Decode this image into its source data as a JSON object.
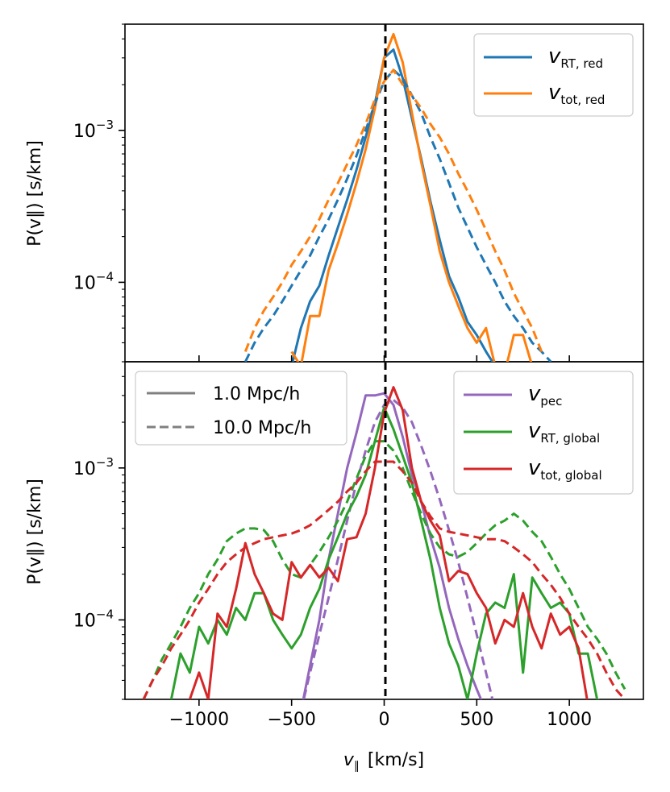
{
  "chart_data": [
    {
      "type": "line",
      "panel": "top",
      "ylabel": "P(v∥) [s/km]",
      "yscale": "log",
      "ylim": [
        3e-05,
        0.005
      ],
      "xlim": [
        -1400,
        1400
      ],
      "y_ticks": [
        {
          "value": 0.001,
          "base": "10",
          "exp": "−3"
        },
        {
          "value": 0.0001,
          "base": "10",
          "exp": "−4"
        }
      ],
      "legend": {
        "position": "top-right",
        "entries": [
          {
            "series": "v_RT_red",
            "main": "v",
            "sub": "RT, red"
          },
          {
            "series": "v_tot_red",
            "main": "v",
            "sub": "tot, red"
          }
        ]
      },
      "series": [
        {
          "name": "v_RT_red",
          "scale": "1.0 Mpc/h",
          "style": "solid",
          "color": "#1f77b4",
          "x": [
            -500,
            -450,
            -400,
            -350,
            -300,
            -250,
            -200,
            -150,
            -100,
            -50,
            0,
            50,
            100,
            150,
            200,
            250,
            300,
            350,
            400,
            450,
            500,
            550,
            600,
            650
          ],
          "y": [
            2.8e-05,
            5e-05,
            7.5e-05,
            9.5e-05,
            0.00015,
            0.00023,
            0.00035,
            0.00055,
            0.0009,
            0.0015,
            0.003,
            0.0034,
            0.0022,
            0.0012,
            0.00065,
            0.00034,
            0.00019,
            0.00011,
            8e-05,
            5.5e-05,
            4.5e-05,
            3.5e-05,
            2.8e-05,
            2.5e-05
          ]
        },
        {
          "name": "v_tot_red",
          "scale": "1.0 Mpc/h",
          "style": "solid",
          "color": "#ff7f0e",
          "x": [
            -500,
            -450,
            -400,
            -350,
            -300,
            -250,
            -200,
            -150,
            -100,
            -50,
            0,
            50,
            100,
            150,
            200,
            250,
            300,
            350,
            400,
            450,
            500,
            550,
            600,
            650,
            700,
            750,
            800
          ],
          "y": [
            3.5e-05,
            2.8e-05,
            6e-05,
            6e-05,
            0.00012,
            0.00018,
            0.00028,
            0.00045,
            0.00075,
            0.0014,
            0.003,
            0.0043,
            0.0028,
            0.0013,
            0.00062,
            0.00032,
            0.00016,
            0.0001,
            7e-05,
            5e-05,
            4e-05,
            5e-05,
            2.8e-05,
            2.5e-05,
            4.5e-05,
            4.5e-05,
            2.8e-05
          ]
        },
        {
          "name": "v_RT_red",
          "scale": "10.0 Mpc/h",
          "style": "dashed",
          "color": "#1f77b4",
          "x": [
            -750,
            -700,
            -650,
            -600,
            -550,
            -500,
            -450,
            -400,
            -350,
            -300,
            -250,
            -200,
            -150,
            -100,
            -50,
            0,
            50,
            100,
            150,
            200,
            250,
            300,
            350,
            400,
            450,
            500,
            550,
            600,
            650,
            700,
            750,
            800,
            850,
            900
          ],
          "y": [
            3e-05,
            4e-05,
            5e-05,
            6e-05,
            7.5e-05,
            9.5e-05,
            0.00012,
            0.00015,
            0.0002,
            0.00026,
            0.00035,
            0.00048,
            0.00068,
            0.001,
            0.0015,
            0.0021,
            0.0025,
            0.0022,
            0.0017,
            0.0013,
            0.0009,
            0.00065,
            0.00045,
            0.00031,
            0.00023,
            0.00017,
            0.00013,
            0.0001,
            7.5e-05,
            6e-05,
            5e-05,
            4e-05,
            3.5e-05,
            3e-05
          ]
        },
        {
          "name": "v_tot_red",
          "scale": "10.0 Mpc/h",
          "style": "dashed",
          "color": "#ff7f0e",
          "x": [
            -750,
            -700,
            -650,
            -600,
            -550,
            -500,
            -450,
            -400,
            -350,
            -300,
            -250,
            -200,
            -150,
            -100,
            -50,
            0,
            50,
            100,
            150,
            200,
            250,
            300,
            350,
            400,
            450,
            500,
            550,
            600,
            650,
            700,
            750,
            800,
            850
          ],
          "y": [
            3.5e-05,
            5e-05,
            6.5e-05,
            8e-05,
            0.0001,
            0.00013,
            0.00016,
            0.0002,
            0.00026,
            0.00035,
            0.00045,
            0.0006,
            0.0008,
            0.0011,
            0.0016,
            0.0021,
            0.0025,
            0.002,
            0.0017,
            0.0014,
            0.0011,
            0.0009,
            0.0007,
            0.00052,
            0.0004,
            0.0003,
            0.00022,
            0.00016,
            0.00012,
            8.5e-05,
            6.5e-05,
            5e-05,
            3.5e-05
          ]
        }
      ]
    },
    {
      "type": "line",
      "panel": "bottom",
      "xlabel_main": "v",
      "xlabel_sub": "∥",
      "xlabel_unit": "[km/s]",
      "ylabel": "P(v∥) [s/km]",
      "yscale": "log",
      "ylim": [
        3e-05,
        0.005
      ],
      "xlim": [
        -1400,
        1400
      ],
      "x_ticks": [
        {
          "value": -1000,
          "label": "−1000"
        },
        {
          "value": -500,
          "label": "−500"
        },
        {
          "value": 0,
          "label": "0"
        },
        {
          "value": 500,
          "label": "500"
        },
        {
          "value": 1000,
          "label": "1000"
        }
      ],
      "y_ticks": [
        {
          "value": 0.001,
          "base": "10",
          "exp": "−3"
        },
        {
          "value": 0.0001,
          "base": "10",
          "exp": "−4"
        }
      ],
      "legend_styles": {
        "position": "top-left",
        "entries": [
          {
            "style": "solid",
            "label": "1.0 Mpc/h"
          },
          {
            "style": "dashed",
            "label": "10.0 Mpc/h"
          }
        ]
      },
      "legend": {
        "position": "top-right",
        "entries": [
          {
            "series": "v_pec",
            "main": "v",
            "sub": "pec"
          },
          {
            "series": "v_RT_global",
            "main": "v",
            "sub": "RT, global"
          },
          {
            "series": "v_tot_global",
            "main": "v",
            "sub": "tot, global"
          }
        ]
      },
      "series": [
        {
          "name": "v_pec",
          "scale": "1.0 Mpc/h",
          "style": "solid",
          "color": "#9467bd",
          "x": [
            -450,
            -400,
            -350,
            -300,
            -250,
            -200,
            -150,
            -100,
            -50,
            0,
            50,
            100,
            150,
            200,
            250,
            300,
            350,
            400,
            450,
            500,
            550
          ],
          "y": [
            2.5e-05,
            5e-05,
            0.0001,
            0.00025,
            0.0005,
            0.001,
            0.0017,
            0.003,
            0.003,
            0.0031,
            0.0026,
            0.0016,
            0.0009,
            0.0006,
            0.00035,
            0.00022,
            0.00012,
            7.5e-05,
            5e-05,
            3.5e-05,
            2.5e-05
          ]
        },
        {
          "name": "v_pec",
          "scale": "10.0 Mpc/h",
          "style": "dashed",
          "color": "#9467bd",
          "x": [
            -450,
            -400,
            -350,
            -300,
            -250,
            -200,
            -150,
            -100,
            -50,
            0,
            50,
            100,
            150,
            200,
            250,
            300,
            350,
            400,
            450,
            500,
            550,
            600
          ],
          "y": [
            2.5e-05,
            4.5e-05,
            8e-05,
            0.00014,
            0.00025,
            0.00045,
            0.0008,
            0.0013,
            0.002,
            0.0026,
            0.0028,
            0.0025,
            0.002,
            0.0014,
            0.00095,
            0.00062,
            0.00039,
            0.00024,
            0.00014,
            8e-05,
            4.5e-05,
            2.5e-05
          ]
        },
        {
          "name": "v_RT_global",
          "scale": "1.0 Mpc/h",
          "style": "solid",
          "color": "#2ca02c",
          "x": [
            -1150,
            -1100,
            -1050,
            -1000,
            -950,
            -900,
            -850,
            -800,
            -750,
            -700,
            -650,
            -600,
            -550,
            -500,
            -450,
            -400,
            -350,
            -300,
            -250,
            -200,
            -150,
            -100,
            -50,
            0,
            50,
            100,
            150,
            200,
            250,
            300,
            350,
            400,
            450,
            500,
            550,
            600,
            650,
            700,
            750,
            800,
            850,
            900,
            950,
            1000,
            1050,
            1100,
            1150,
            1200
          ],
          "y": [
            3e-05,
            6e-05,
            4.5e-05,
            9e-05,
            7e-05,
            0.0001,
            8e-05,
            0.00012,
            0.0001,
            0.00015,
            0.00015,
            0.0001,
            8e-05,
            6.5e-05,
            8e-05,
            0.00012,
            0.00016,
            0.00025,
            0.00035,
            0.0005,
            0.00065,
            0.0009,
            0.0015,
            0.0025,
            0.0018,
            0.0012,
            0.0008,
            0.00045,
            0.00025,
            0.00012,
            7e-05,
            5e-05,
            3e-05,
            6e-05,
            0.00011,
            0.00013,
            0.00012,
            0.0002,
            4.5e-05,
            0.00019,
            0.00015,
            0.00012,
            0.00013,
            0.00011,
            6e-05,
            6e-05,
            3e-05,
            2.8e-05
          ]
        },
        {
          "name": "v_RT_global",
          "scale": "10.0 Mpc/h",
          "style": "dashed",
          "color": "#2ca02c",
          "x": [
            -1300,
            -1250,
            -1200,
            -1150,
            -1100,
            -1050,
            -1000,
            -950,
            -900,
            -850,
            -800,
            -750,
            -700,
            -650,
            -600,
            -550,
            -500,
            -450,
            -400,
            -350,
            -300,
            -250,
            -200,
            -150,
            -100,
            -50,
            0,
            50,
            100,
            150,
            200,
            250,
            300,
            350,
            400,
            450,
            500,
            550,
            600,
            650,
            700,
            750,
            800,
            850,
            900,
            950,
            1000,
            1050,
            1100,
            1150,
            1200,
            1250,
            1300
          ],
          "y": [
            3e-05,
            4e-05,
            5.5e-05,
            7e-05,
            9e-05,
            0.00012,
            0.00015,
            0.0002,
            0.00025,
            0.00033,
            0.00037,
            0.0004,
            0.0004,
            0.00039,
            0.00033,
            0.00025,
            0.0002,
            0.00019,
            0.00023,
            0.00028,
            0.00035,
            0.00045,
            0.0006,
            0.00085,
            0.0012,
            0.0015,
            0.0015,
            0.0013,
            0.001,
            0.0007,
            0.0005,
            0.00037,
            0.0003,
            0.00027,
            0.00026,
            0.00028,
            0.00032,
            0.00037,
            0.00042,
            0.00045,
            0.0005,
            0.00045,
            0.00038,
            0.00033,
            0.00026,
            0.0002,
            0.00016,
            0.00012,
            9e-05,
            7.5e-05,
            6e-05,
            4.5e-05,
            3.5e-05
          ]
        },
        {
          "name": "v_tot_global",
          "scale": "1.0 Mpc/h",
          "style": "solid",
          "color": "#d62728",
          "x": [
            -1050,
            -1000,
            -950,
            -900,
            -850,
            -800,
            -750,
            -700,
            -650,
            -600,
            -550,
            -500,
            -450,
            -400,
            -350,
            -300,
            -250,
            -200,
            -150,
            -100,
            -50,
            0,
            50,
            100,
            150,
            200,
            250,
            300,
            350,
            400,
            450,
            500,
            550,
            600,
            650,
            700,
            750,
            800,
            850,
            900,
            950,
            1000,
            1050,
            1100,
            1150
          ],
          "y": [
            3e-05,
            4.5e-05,
            3e-05,
            0.00011,
            9e-05,
            0.00016,
            0.00032,
            0.0002,
            0.00015,
            0.00011,
            0.0001,
            0.00024,
            0.00019,
            0.00023,
            0.00019,
            0.00022,
            0.00018,
            0.00034,
            0.00035,
            0.0005,
            0.001,
            0.0023,
            0.0034,
            0.0024,
            0.001,
            0.0006,
            0.00045,
            0.00036,
            0.00018,
            0.00021,
            0.0002,
            0.00015,
            0.00012,
            7e-05,
            0.0001,
            9e-05,
            0.00015,
            9e-05,
            6.5e-05,
            0.00011,
            8e-05,
            9e-05,
            6.5e-05,
            2.8e-05,
            2.5e-05
          ]
        },
        {
          "name": "v_tot_global",
          "scale": "10.0 Mpc/h",
          "style": "dashed",
          "color": "#d62728",
          "x": [
            -1300,
            -1250,
            -1200,
            -1150,
            -1100,
            -1050,
            -1000,
            -950,
            -900,
            -850,
            -800,
            -750,
            -700,
            -650,
            -600,
            -550,
            -500,
            -450,
            -400,
            -350,
            -300,
            -250,
            -200,
            -150,
            -100,
            -50,
            0,
            50,
            100,
            150,
            200,
            250,
            300,
            350,
            400,
            450,
            500,
            550,
            600,
            650,
            700,
            750,
            800,
            850,
            900,
            950,
            1000,
            1050,
            1100,
            1150,
            1200,
            1250,
            1300
          ],
          "y": [
            3e-05,
            4e-05,
            5e-05,
            6.5e-05,
            8e-05,
            0.0001,
            0.00013,
            0.00016,
            0.0002,
            0.00024,
            0.00027,
            0.0003,
            0.00032,
            0.00034,
            0.00035,
            0.00036,
            0.00037,
            0.00039,
            0.00042,
            0.00047,
            0.00053,
            0.0006,
            0.0007,
            0.0008,
            0.00095,
            0.0011,
            0.0011,
            0.0011,
            0.00095,
            0.0008,
            0.0006,
            0.00048,
            0.0004,
            0.00038,
            0.00037,
            0.00036,
            0.00035,
            0.00034,
            0.00034,
            0.00033,
            0.0003,
            0.00027,
            0.00024,
            0.0002,
            0.00017,
            0.00014,
            0.00011,
            9e-05,
            7.5e-05,
            6e-05,
            4.5e-05,
            3.5e-05,
            3e-05
          ]
        }
      ]
    }
  ]
}
